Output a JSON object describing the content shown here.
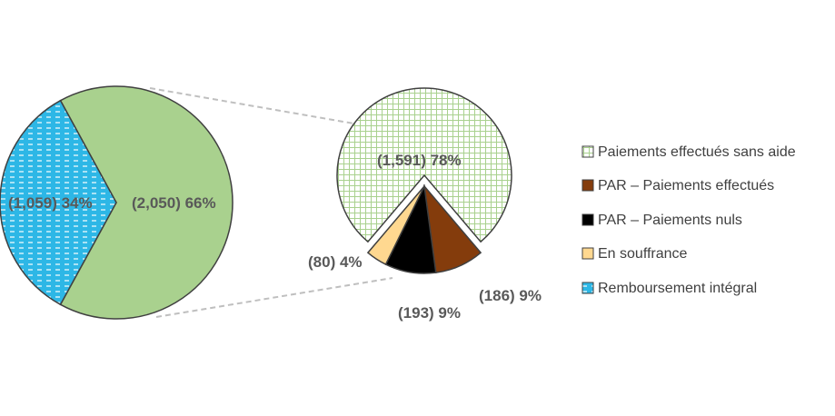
{
  "chart_data": {
    "type": "pie",
    "main_pie": {
      "slices": [
        {
          "label": "(2,050) 66%",
          "value": 2050,
          "percent": 66,
          "color": "#a9d18e"
        },
        {
          "label": "(1,059) 34%",
          "value": 1059,
          "percent": 34,
          "color": "#2db7e6"
        }
      ]
    },
    "exploded_pie": {
      "slices": [
        {
          "category": "Paiements effectués sans aide",
          "label": "(1,591) 78%",
          "value": 1591,
          "percent": 78,
          "color": "#ffffff",
          "pattern": "grid-green"
        },
        {
          "category": "PAR – Paiements effectués",
          "label": "(186) 9%",
          "value": 186,
          "percent": 9,
          "color": "#843c0c"
        },
        {
          "category": "PAR – Paiements nuls",
          "label": "(193) 9%",
          "value": 193,
          "percent": 9,
          "color": "#000000"
        },
        {
          "category": "En souffrance",
          "label": "(80) 4%",
          "value": 80,
          "percent": 4,
          "color": "#ffd890"
        }
      ]
    },
    "legend": [
      {
        "label": "Paiements effectués sans aide",
        "color": "#e2f0d9",
        "pattern": "grid-green"
      },
      {
        "label": "PAR – Paiements effectués",
        "color": "#843c0c"
      },
      {
        "label": "PAR – Paiements nuls",
        "color": "#000000"
      },
      {
        "label": "En souffrance",
        "color": "#ffd890"
      },
      {
        "label": "Remboursement intégral",
        "color": "#2db7e6"
      }
    ]
  }
}
